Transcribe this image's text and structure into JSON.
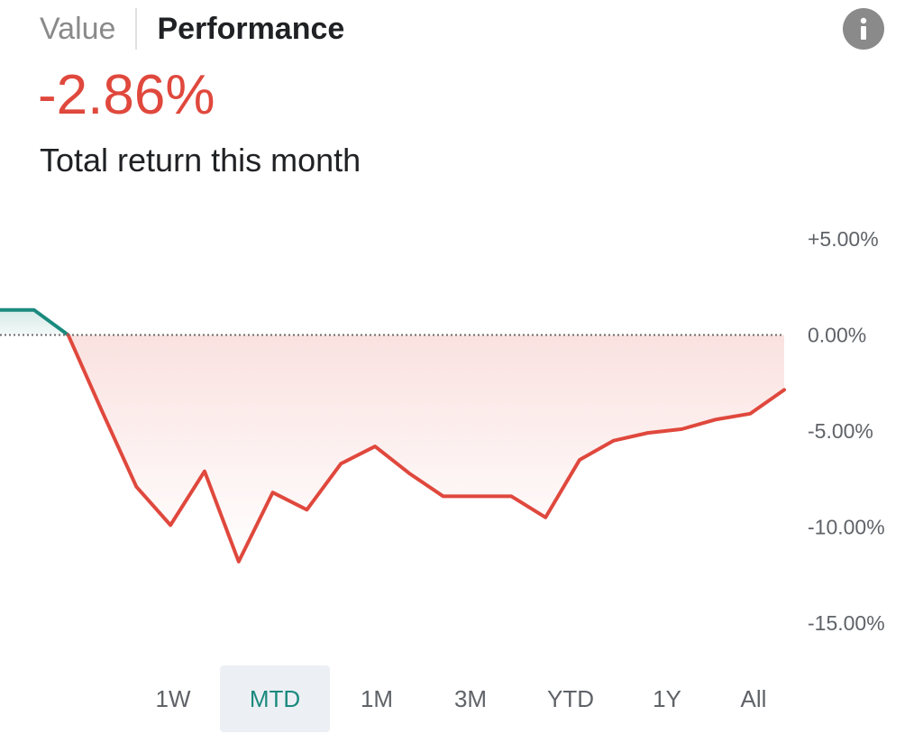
{
  "tabs": {
    "value_label": "Value",
    "performance_label": "Performance",
    "active": "Performance"
  },
  "summary": {
    "return_value": "-2.86%",
    "return_label": "Total return this month"
  },
  "colors": {
    "negative": "#e0483d",
    "positive": "#1a8a7e",
    "selected_range_bg": "#eceff4"
  },
  "icons": {
    "info": "info-icon"
  },
  "range_options": [
    "1W",
    "MTD",
    "1M",
    "3M",
    "YTD",
    "1Y",
    "All"
  ],
  "selected_range": "MTD",
  "chart_data": {
    "type": "line",
    "title": "",
    "xlabel": "",
    "ylabel": "",
    "ylim": [
      -15,
      5
    ],
    "y_ticks": [
      "+5.00%",
      "0.00%",
      "-5.00%",
      "-10.00%",
      "-15.00%"
    ],
    "baseline": 0,
    "grid": false,
    "series": [
      {
        "values": [
          1.3,
          1.3,
          0.0,
          -4.0,
          -7.9,
          -9.9,
          -7.1,
          -11.8,
          -8.2,
          -9.1,
          -6.7,
          -5.8,
          -7.2,
          -8.4,
          -8.4,
          -8.4,
          -9.5,
          -6.5,
          -5.5,
          -5.1,
          -4.9,
          -4.4,
          -4.1,
          -2.86
        ]
      }
    ]
  }
}
